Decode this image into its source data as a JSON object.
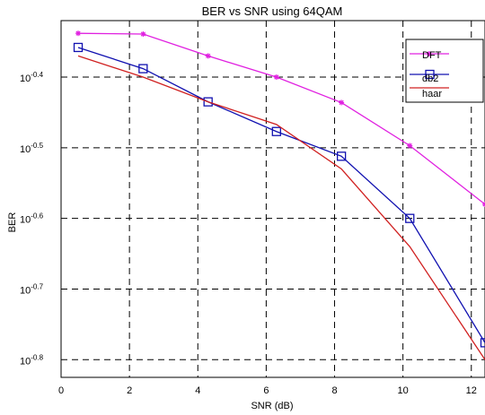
{
  "chart_data": {
    "type": "line",
    "title": "BER vs SNR using 64QAM",
    "xlabel": "SNR (dB)",
    "ylabel": "BER",
    "x_ticks": [
      "0",
      "2",
      "4",
      "6",
      "8",
      "10",
      "12"
    ],
    "y_ticks": [
      {
        "value": -0.4,
        "base": "10",
        "exp": "-0.4"
      },
      {
        "value": -0.5,
        "base": "10",
        "exp": "-0.5"
      },
      {
        "value": -0.6,
        "base": "10",
        "exp": "-0.6"
      },
      {
        "value": -0.7,
        "base": "10",
        "exp": "-0.7"
      },
      {
        "value": -0.8,
        "base": "10",
        "exp": "-0.8"
      }
    ],
    "xlim": [
      0,
      12.4
    ],
    "ylim_log10": [
      -0.825,
      -0.32
    ],
    "y_scale": "log",
    "grid": true,
    "legend_position": "top-right",
    "series": [
      {
        "name": "DFT",
        "color": "#e020e0",
        "marker": "star",
        "x": [
          0.5,
          2.4,
          4.3,
          6.3,
          8.2,
          10.2,
          12.4
        ],
        "log10_y": [
          -0.338,
          -0.339,
          -0.37,
          -0.4,
          -0.436,
          -0.497,
          -0.58
        ]
      },
      {
        "name": "db2",
        "color": "#1010b0",
        "marker": "square",
        "x": [
          0.5,
          2.4,
          4.3,
          6.3,
          8.2,
          10.2,
          12.4
        ],
        "log10_y": [
          -0.358,
          -0.388,
          -0.435,
          -0.477,
          -0.512,
          -0.6,
          -0.776
        ]
      },
      {
        "name": "haar",
        "color": "#d02020",
        "marker": "none",
        "x": [
          0.5,
          2.4,
          4.3,
          6.3,
          8.2,
          10.2,
          12.4
        ],
        "log10_y": [
          -0.37,
          -0.4,
          -0.435,
          -0.467,
          -0.53,
          -0.64,
          -0.8
        ]
      }
    ]
  }
}
